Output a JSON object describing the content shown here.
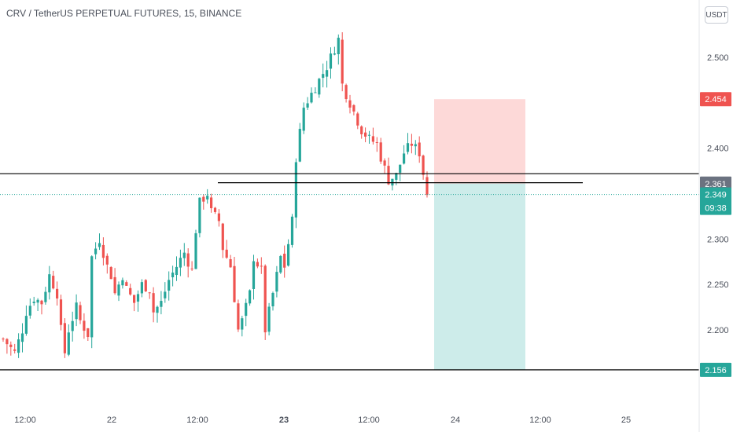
{
  "header": {
    "title": "CRV / TetherUS PERPETUAL FUTURES, 15, BINANCE",
    "currency": "USDT"
  },
  "colors": {
    "up": "#26a69a",
    "down": "#ef5350",
    "line": "#000000",
    "last_price": "#26a69a",
    "risk_zone": "#fdd9d8",
    "reward_zone": "#cdecea",
    "axis_text": "#4a4f5a",
    "label_gray": "#6b7280"
  },
  "chart_data": {
    "type": "candlestick",
    "timeframe": "15",
    "x_ticks": [
      "12:00",
      "22",
      "12:00",
      "23",
      "12:00",
      "24",
      "12:00",
      "25"
    ],
    "y_ticks": [
      2.2,
      2.25,
      2.3,
      2.35,
      2.4,
      2.45,
      2.5
    ],
    "y_tick_labels": [
      "2.200",
      "2.250",
      "2.300",
      "2.350",
      "2.400",
      "2.450",
      "2.500"
    ],
    "ylim": [
      2.13,
      2.55
    ],
    "horizontal_lines": [
      {
        "name": "resistance",
        "price": 2.372
      },
      {
        "name": "entry",
        "price": 2.362
      },
      {
        "name": "support",
        "price": 2.156
      }
    ],
    "position": {
      "type": "short",
      "entry": 2.361,
      "stop": 2.454,
      "target": 2.156
    },
    "price_labels": {
      "stop": "2.454",
      "entry": "2.361",
      "last": "2.349",
      "countdown": "09:38",
      "target": "2.156"
    },
    "last_price": 2.349,
    "close_path": [
      [
        0,
        2.19
      ],
      [
        3,
        2.175
      ],
      [
        5,
        2.2
      ],
      [
        6,
        2.22
      ],
      [
        8,
        2.235
      ],
      [
        10,
        2.23
      ],
      [
        12,
        2.26
      ],
      [
        14,
        2.24
      ],
      [
        15,
        2.2
      ],
      [
        16,
        2.175
      ],
      [
        17,
        2.2
      ],
      [
        19,
        2.225
      ],
      [
        20,
        2.21
      ],
      [
        22,
        2.195
      ],
      [
        23,
        2.28
      ],
      [
        25,
        2.3
      ],
      [
        27,
        2.27
      ],
      [
        28,
        2.26
      ],
      [
        29,
        2.24
      ],
      [
        31,
        2.26
      ],
      [
        32,
        2.245
      ],
      [
        34,
        2.23
      ],
      [
        36,
        2.25
      ],
      [
        38,
        2.245
      ],
      [
        39,
        2.22
      ],
      [
        41,
        2.23
      ],
      [
        43,
        2.255
      ],
      [
        45,
        2.27
      ],
      [
        47,
        2.285
      ],
      [
        49,
        2.265
      ],
      [
        50,
        2.31
      ],
      [
        51,
        2.34
      ],
      [
        53,
        2.35
      ],
      [
        54,
        2.33
      ],
      [
        56,
        2.32
      ],
      [
        57,
        2.29
      ],
      [
        59,
        2.27
      ],
      [
        61,
        2.2
      ],
      [
        62,
        2.21
      ],
      [
        64,
        2.24
      ],
      [
        65,
        2.28
      ],
      [
        67,
        2.265
      ],
      [
        68,
        2.2
      ],
      [
        70,
        2.24
      ],
      [
        72,
        2.28
      ],
      [
        73,
        2.27
      ],
      [
        75,
        2.32
      ],
      [
        76,
        2.39
      ],
      [
        78,
        2.445
      ],
      [
        80,
        2.46
      ],
      [
        82,
        2.475
      ],
      [
        84,
        2.49
      ],
      [
        86,
        2.51
      ],
      [
        87,
        2.52
      ],
      [
        88,
        2.47
      ],
      [
        90,
        2.45
      ],
      [
        92,
        2.43
      ],
      [
        93,
        2.42
      ],
      [
        95,
        2.41
      ],
      [
        97,
        2.405
      ],
      [
        98,
        2.39
      ],
      [
        100,
        2.365
      ],
      [
        102,
        2.37
      ],
      [
        104,
        2.395
      ],
      [
        106,
        2.405
      ],
      [
        108,
        2.395
      ],
      [
        110,
        2.35
      ]
    ]
  }
}
